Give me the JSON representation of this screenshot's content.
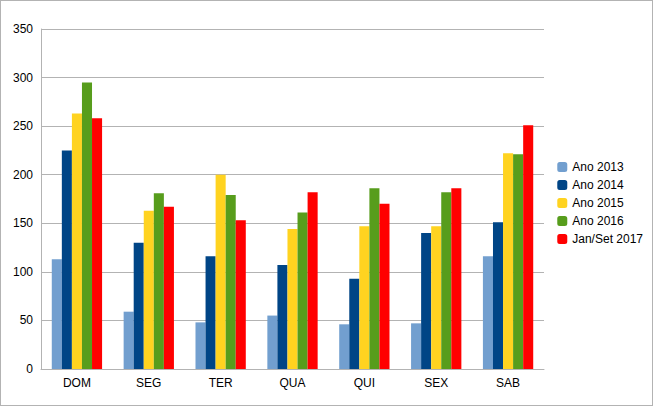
{
  "chart_data": {
    "type": "bar",
    "categories": [
      "DOM",
      "SEG",
      "TER",
      "QUA",
      "QUI",
      "SEX",
      "SAB"
    ],
    "series": [
      {
        "name": "Ano 2013",
        "color": "#729fcf",
        "values": [
          113,
          59,
          48,
          55,
          46,
          47,
          116
        ]
      },
      {
        "name": "Ano 2014",
        "color": "#004586",
        "values": [
          225,
          130,
          116,
          107,
          93,
          140,
          151
        ]
      },
      {
        "name": "Ano 2015",
        "color": "#ffd320",
        "values": [
          263,
          163,
          200,
          144,
          147,
          147,
          222
        ]
      },
      {
        "name": "Ano 2016",
        "color": "#579d1c",
        "values": [
          295,
          181,
          179,
          161,
          186,
          182,
          221
        ]
      },
      {
        "name": "Jan/Set 2017",
        "color": "#ff0000",
        "values": [
          258,
          167,
          153,
          182,
          170,
          186,
          251
        ]
      }
    ],
    "ylim": [
      0,
      350
    ],
    "yticks": [
      0,
      50,
      100,
      150,
      200,
      250,
      300,
      350
    ],
    "grid": true,
    "legend": "right"
  }
}
